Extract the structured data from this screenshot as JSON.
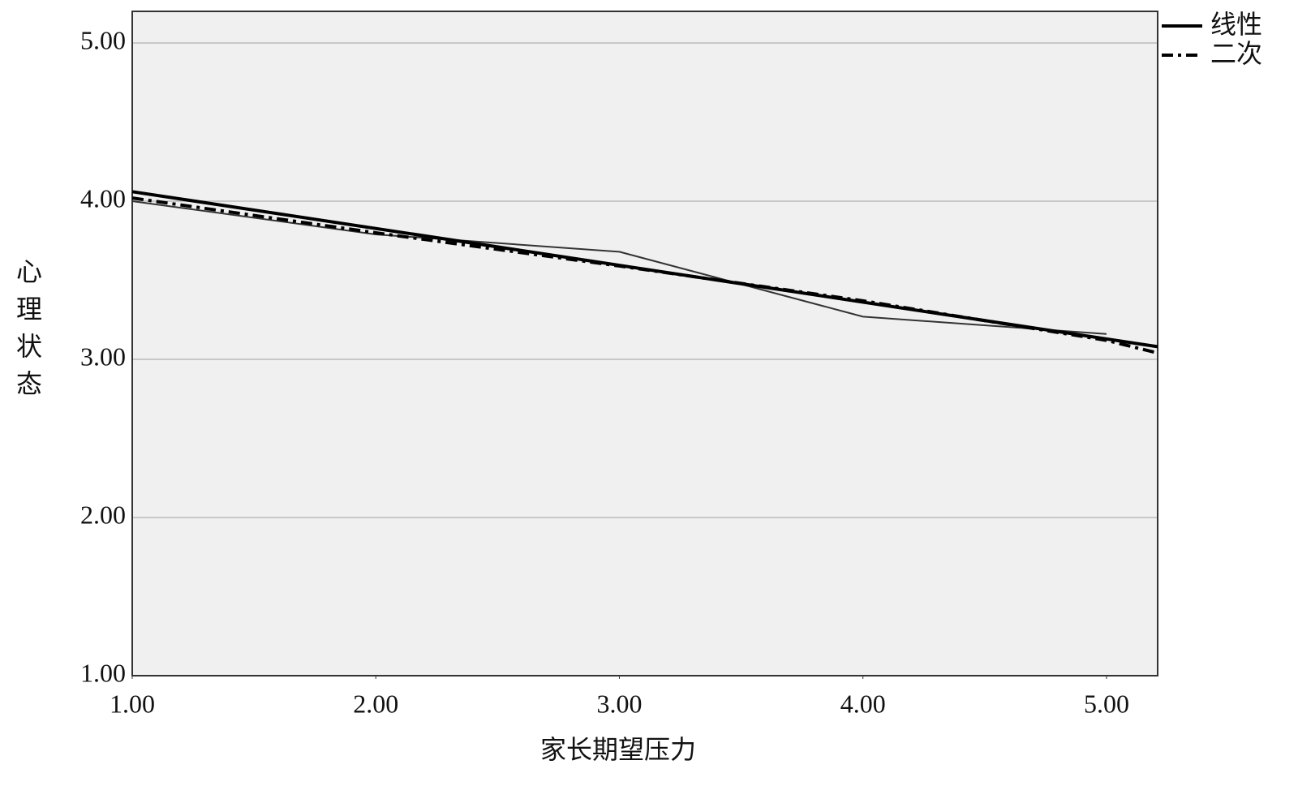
{
  "chart_data": {
    "type": "line",
    "x_label": "家长期望压力",
    "y_label": "心理状态",
    "xlim": [
      1,
      5.21
    ],
    "ylim": [
      1,
      5.2
    ],
    "xticks": [
      {
        "value": 1,
        "label": "1.00"
      },
      {
        "value": 2,
        "label": "2.00"
      },
      {
        "value": 3,
        "label": "3.00"
      },
      {
        "value": 4,
        "label": "4.00"
      },
      {
        "value": 5,
        "label": "5.00"
      }
    ],
    "yticks": [
      {
        "value": 1,
        "label": "1.00"
      },
      {
        "value": 2,
        "label": "2.00"
      },
      {
        "value": 3,
        "label": "3.00"
      },
      {
        "value": 4,
        "label": "4.00"
      },
      {
        "value": 5,
        "label": "5.00"
      }
    ],
    "grid": true,
    "legend": "top-right-outside",
    "series": [
      {
        "x": [
          1,
          2,
          3,
          4,
          5
        ],
        "values": [
          4.0,
          3.79,
          3.68,
          3.27,
          3.16
        ],
        "color": "#333333",
        "style": "thin"
      },
      {
        "name": "线性",
        "x": [
          1,
          5.21
        ],
        "values": [
          4.06,
          3.08
        ],
        "color": "#000000",
        "style": "solid"
      },
      {
        "name": "二次",
        "x": [
          1,
          2,
          3,
          4,
          5,
          5.21
        ],
        "values": [
          4.02,
          3.8,
          3.59,
          3.37,
          3.12,
          3.04
        ],
        "color": "#000000",
        "style": "dashdot"
      }
    ]
  }
}
